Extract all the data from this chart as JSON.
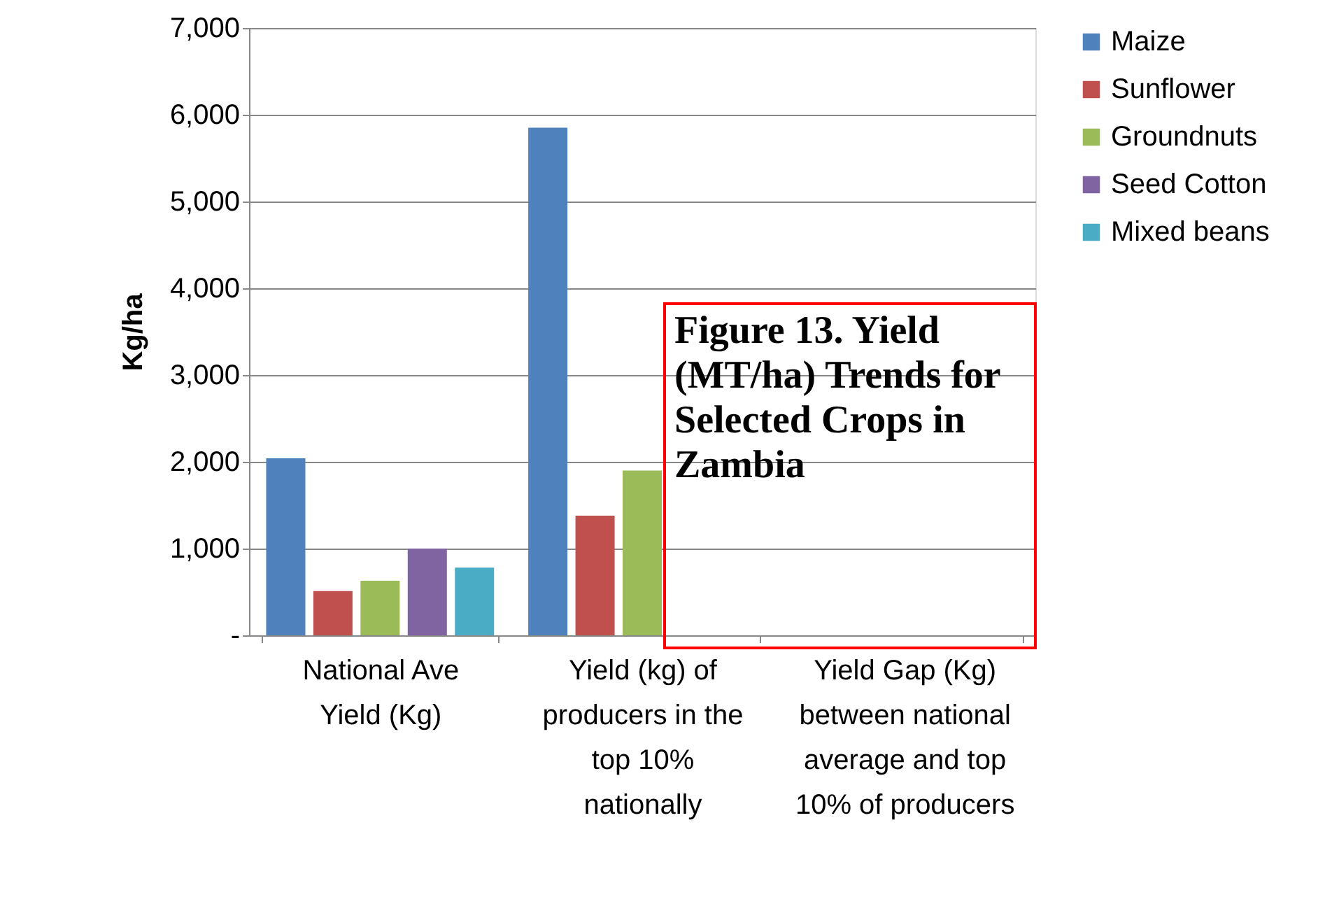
{
  "chart_data": {
    "type": "bar",
    "title": "Figure 13. Yield (MT/ha) Trends for Selected Crops in Zambia",
    "ylabel": "Kg/ha",
    "categories": [
      "National Ave Yield (Kg)",
      "Yield (kg) of producers in the top 10% nationally",
      "Yield Gap (Kg) between national average and top 10% of producers"
    ],
    "series": [
      {
        "name": "Maize",
        "color": "#4f81bd",
        "values": [
          2040,
          5850,
          null
        ]
      },
      {
        "name": "Sunflower",
        "color": "#c0504d",
        "values": [
          510,
          1380,
          null
        ]
      },
      {
        "name": "Groundnuts",
        "color": "#9bbb59",
        "values": [
          630,
          1900,
          null
        ]
      },
      {
        "name": "Seed Cotton",
        "color": "#8064a2",
        "values": [
          1000,
          null,
          null
        ]
      },
      {
        "name": "Mixed beans",
        "color": "#4bacc6",
        "values": [
          780,
          null,
          null
        ]
      }
    ],
    "ylim": [
      0,
      7000
    ],
    "yticks": [
      {
        "value": 0,
        "label": "-"
      },
      {
        "value": 1000,
        "label": "1,000"
      },
      {
        "value": 2000,
        "label": "2,000"
      },
      {
        "value": 3000,
        "label": "3,000"
      },
      {
        "value": 4000,
        "label": "4,000"
      },
      {
        "value": 5000,
        "label": "5,000"
      },
      {
        "value": 6000,
        "label": "6,000"
      },
      {
        "value": 7000,
        "label": "7,000"
      }
    ],
    "grid": "y",
    "legend": "right"
  }
}
